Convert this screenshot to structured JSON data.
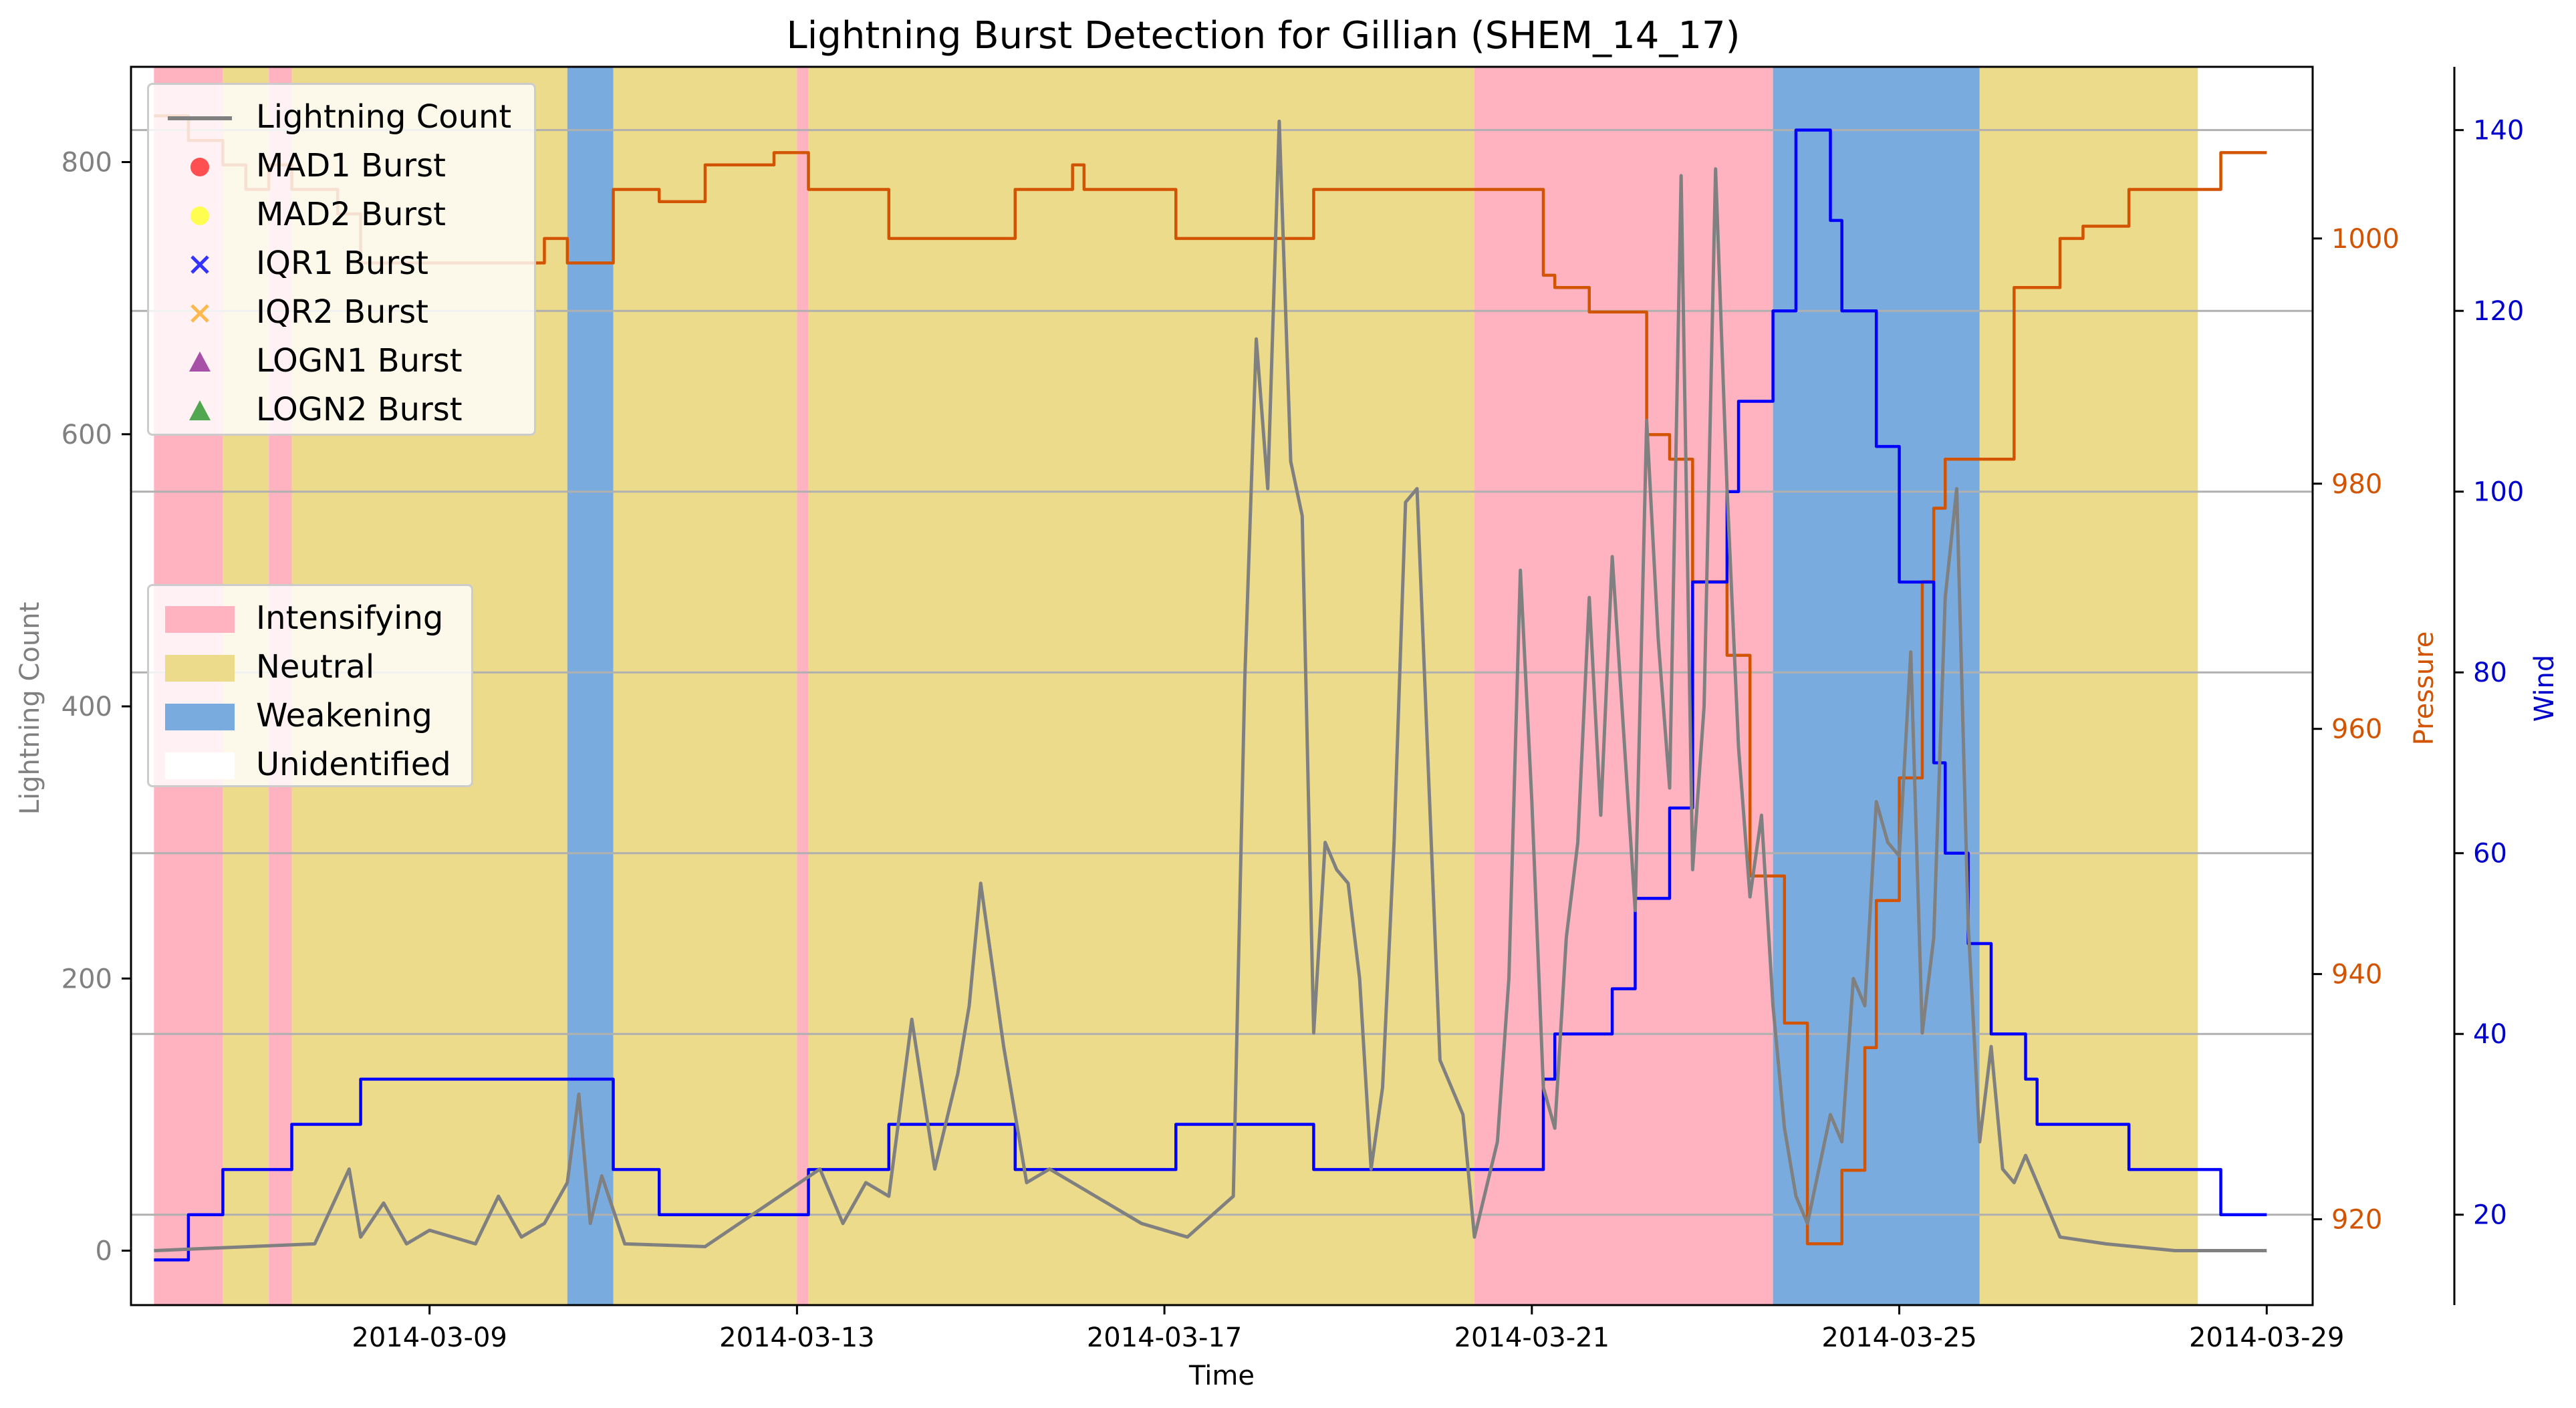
{
  "chart_data": {
    "type": "line",
    "title": "Lightning Burst Detection for Gillian (SHEM_14_17)",
    "xlabel": "Time",
    "x_ticks": [
      "2014-03-09",
      "2014-03-13",
      "2014-03-17",
      "2014-03-21",
      "2014-03-25",
      "2014-03-29"
    ],
    "x_range": [
      "2014-03-05T18:00",
      "2014-03-29T12:00"
    ],
    "axes": {
      "left": {
        "label": "Lightning Count",
        "ylim": [
          -40,
          870
        ],
        "ticks": [
          0,
          200,
          400,
          600,
          800
        ],
        "color": "#808080"
      },
      "right1": {
        "label": "Pressure",
        "ylim": [
          913,
          1014
        ],
        "ticks": [
          920,
          940,
          960,
          980,
          1000
        ],
        "color": "#d35400"
      },
      "right2": {
        "label": "Wind",
        "ylim": [
          10,
          147
        ],
        "ticks": [
          20,
          40,
          60,
          80,
          100,
          120,
          140
        ],
        "color": "#0000cd"
      }
    },
    "grid": "horizontal (right2 ticks)",
    "legend_top": {
      "placement": "top-left",
      "entries": [
        {
          "label": "Lightning Count",
          "marker": "line",
          "color": "#808080"
        },
        {
          "label": "MAD1 Burst",
          "marker": "circle",
          "color": "#ff3333"
        },
        {
          "label": "MAD2 Burst",
          "marker": "circle",
          "color": "#ffff33"
        },
        {
          "label": "IQR1 Burst",
          "marker": "x",
          "color": "#3333ff"
        },
        {
          "label": "IQR2 Burst",
          "marker": "x",
          "color": "#ffb84d"
        },
        {
          "label": "LOGN1 Burst",
          "marker": "triangle",
          "color": "#993399"
        },
        {
          "label": "LOGN2 Burst",
          "marker": "triangle",
          "color": "#339933"
        }
      ]
    },
    "legend_phase": {
      "placement": "center-left",
      "entries": [
        {
          "label": "Intensifying",
          "color": "#ffb3c1"
        },
        {
          "label": "Neutral",
          "color": "#ecdb8a"
        },
        {
          "label": "Weakening",
          "color": "#7aabdf"
        },
        {
          "label": "Unidentified",
          "color": "#ffffff"
        }
      ]
    },
    "phases": [
      {
        "start": "2014-03-06T00:00",
        "end": "2014-03-06T18:00",
        "phase": "Intensifying"
      },
      {
        "start": "2014-03-06T18:00",
        "end": "2014-03-07T06:00",
        "phase": "Neutral"
      },
      {
        "start": "2014-03-07T06:00",
        "end": "2014-03-07T12:00",
        "phase": "Intensifying"
      },
      {
        "start": "2014-03-07T12:00",
        "end": "2014-03-10T12:00",
        "phase": "Neutral"
      },
      {
        "start": "2014-03-10T12:00",
        "end": "2014-03-11T00:00",
        "phase": "Weakening"
      },
      {
        "start": "2014-03-11T00:00",
        "end": "2014-03-13T00:00",
        "phase": "Neutral"
      },
      {
        "start": "2014-03-13T00:00",
        "end": "2014-03-13T03:00",
        "phase": "Intensifying"
      },
      {
        "start": "2014-03-13T03:00",
        "end": "2014-03-20T09:00",
        "phase": "Neutral"
      },
      {
        "start": "2014-03-20T09:00",
        "end": "2014-03-23T15:00",
        "phase": "Intensifying"
      },
      {
        "start": "2014-03-23T15:00",
        "end": "2014-03-25T21:00",
        "phase": "Weakening"
      },
      {
        "start": "2014-03-25T21:00",
        "end": "2014-03-28T06:00",
        "phase": "Neutral"
      }
    ],
    "series": [
      {
        "name": "Pressure",
        "axis": "right1",
        "color": "#d35400",
        "style": "step",
        "points": [
          [
            "2014-03-06T00:00",
            1010
          ],
          [
            "2014-03-06T09:00",
            1008
          ],
          [
            "2014-03-06T18:00",
            1006
          ],
          [
            "2014-03-07T00:00",
            1004
          ],
          [
            "2014-03-07T06:00",
            1006
          ],
          [
            "2014-03-07T12:00",
            1004
          ],
          [
            "2014-03-08T00:00",
            1002
          ],
          [
            "2014-03-08T06:00",
            998
          ],
          [
            "2014-03-10T06:00",
            1000
          ],
          [
            "2014-03-10T12:00",
            998
          ],
          [
            "2014-03-11T00:00",
            1004
          ],
          [
            "2014-03-11T12:00",
            1003
          ],
          [
            "2014-03-12T00:00",
            1006
          ],
          [
            "2014-03-12T18:00",
            1007
          ],
          [
            "2014-03-13T03:00",
            1004
          ],
          [
            "2014-03-14T00:00",
            1000
          ],
          [
            "2014-03-15T09:00",
            1004
          ],
          [
            "2014-03-16T00:00",
            1006
          ],
          [
            "2014-03-16T03:00",
            1004
          ],
          [
            "2014-03-17T03:00",
            1000
          ],
          [
            "2014-03-18T15:00",
            1004
          ],
          [
            "2014-03-20T12:00",
            1004
          ],
          [
            "2014-03-21T03:00",
            997
          ],
          [
            "2014-03-21T06:00",
            996
          ],
          [
            "2014-03-21T15:00",
            994
          ],
          [
            "2014-03-22T06:00",
            984
          ],
          [
            "2014-03-22T12:00",
            982
          ],
          [
            "2014-03-22T18:00",
            972
          ],
          [
            "2014-03-23T03:00",
            966
          ],
          [
            "2014-03-23T09:00",
            948
          ],
          [
            "2014-03-23T18:00",
            936
          ],
          [
            "2014-03-24T00:00",
            918
          ],
          [
            "2014-03-24T09:00",
            924
          ],
          [
            "2014-03-24T15:00",
            934
          ],
          [
            "2014-03-24T18:00",
            946
          ],
          [
            "2014-03-25T00:00",
            956
          ],
          [
            "2014-03-25T06:00",
            972
          ],
          [
            "2014-03-25T09:00",
            978
          ],
          [
            "2014-03-25T12:00",
            982
          ],
          [
            "2014-03-26T06:00",
            996
          ],
          [
            "2014-03-26T18:00",
            1000
          ],
          [
            "2014-03-27T00:00",
            1001
          ],
          [
            "2014-03-27T12:00",
            1004
          ],
          [
            "2014-03-28T12:00",
            1007
          ],
          [
            "2014-03-29T00:00",
            1007
          ]
        ]
      },
      {
        "name": "Wind",
        "axis": "right2",
        "color": "#0000ff",
        "style": "step",
        "points": [
          [
            "2014-03-06T00:00",
            15
          ],
          [
            "2014-03-06T09:00",
            20
          ],
          [
            "2014-03-06T18:00",
            25
          ],
          [
            "2014-03-07T12:00",
            30
          ],
          [
            "2014-03-08T06:00",
            35
          ],
          [
            "2014-03-11T00:00",
            25
          ],
          [
            "2014-03-11T12:00",
            20
          ],
          [
            "2014-03-13T03:00",
            25
          ],
          [
            "2014-03-14T00:00",
            30
          ],
          [
            "2014-03-15T09:00",
            25
          ],
          [
            "2014-03-17T03:00",
            30
          ],
          [
            "2014-03-18T15:00",
            25
          ],
          [
            "2014-03-21T03:00",
            35
          ],
          [
            "2014-03-21T06:00",
            40
          ],
          [
            "2014-03-21T21:00",
            45
          ],
          [
            "2014-03-22T03:00",
            55
          ],
          [
            "2014-03-22T12:00",
            65
          ],
          [
            "2014-03-22T18:00",
            90
          ],
          [
            "2014-03-23T03:00",
            100
          ],
          [
            "2014-03-23T06:00",
            110
          ],
          [
            "2014-03-23T15:00",
            120
          ],
          [
            "2014-03-23T21:00",
            140
          ],
          [
            "2014-03-24T06:00",
            130
          ],
          [
            "2014-03-24T09:00",
            120
          ],
          [
            "2014-03-24T18:00",
            105
          ],
          [
            "2014-03-25T00:00",
            90
          ],
          [
            "2014-03-25T09:00",
            70
          ],
          [
            "2014-03-25T12:00",
            60
          ],
          [
            "2014-03-25T18:00",
            50
          ],
          [
            "2014-03-26T00:00",
            40
          ],
          [
            "2014-03-26T09:00",
            35
          ],
          [
            "2014-03-26T12:00",
            30
          ],
          [
            "2014-03-27T12:00",
            25
          ],
          [
            "2014-03-28T12:00",
            20
          ],
          [
            "2014-03-29T00:00",
            20
          ]
        ]
      },
      {
        "name": "Lightning Count",
        "axis": "left",
        "color": "#808080",
        "style": "line",
        "points": [
          [
            "2014-03-06T00:00",
            0
          ],
          [
            "2014-03-07T18:00",
            5
          ],
          [
            "2014-03-08T03:00",
            60
          ],
          [
            "2014-03-08T06:00",
            10
          ],
          [
            "2014-03-08T12:00",
            35
          ],
          [
            "2014-03-08T18:00",
            5
          ],
          [
            "2014-03-09T00:00",
            15
          ],
          [
            "2014-03-09T12:00",
            5
          ],
          [
            "2014-03-09T18:00",
            40
          ],
          [
            "2014-03-10T00:00",
            10
          ],
          [
            "2014-03-10T06:00",
            20
          ],
          [
            "2014-03-10T12:00",
            50
          ],
          [
            "2014-03-10T15:00",
            115
          ],
          [
            "2014-03-10T18:00",
            20
          ],
          [
            "2014-03-10T21:00",
            55
          ],
          [
            "2014-03-11T03:00",
            5
          ],
          [
            "2014-03-12T00:00",
            3
          ],
          [
            "2014-03-13T06:00",
            60
          ],
          [
            "2014-03-13T12:00",
            20
          ],
          [
            "2014-03-13T18:00",
            50
          ],
          [
            "2014-03-14T00:00",
            40
          ],
          [
            "2014-03-14T06:00",
            170
          ],
          [
            "2014-03-14T12:00",
            60
          ],
          [
            "2014-03-14T18:00",
            130
          ],
          [
            "2014-03-14T21:00",
            180
          ],
          [
            "2014-03-15T00:00",
            270
          ],
          [
            "2014-03-15T03:00",
            210
          ],
          [
            "2014-03-15T06:00",
            150
          ],
          [
            "2014-03-15T12:00",
            50
          ],
          [
            "2014-03-15T18:00",
            60
          ],
          [
            "2014-03-16T06:00",
            40
          ],
          [
            "2014-03-16T18:00",
            20
          ],
          [
            "2014-03-17T06:00",
            10
          ],
          [
            "2014-03-17T18:00",
            40
          ],
          [
            "2014-03-17T21:00",
            420
          ],
          [
            "2014-03-18T00:00",
            670
          ],
          [
            "2014-03-18T03:00",
            560
          ],
          [
            "2014-03-18T06:00",
            830
          ],
          [
            "2014-03-18T09:00",
            580
          ],
          [
            "2014-03-18T12:00",
            540
          ],
          [
            "2014-03-18T15:00",
            160
          ],
          [
            "2014-03-18T18:00",
            300
          ],
          [
            "2014-03-18T21:00",
            280
          ],
          [
            "2014-03-19T00:00",
            270
          ],
          [
            "2014-03-19T03:00",
            200
          ],
          [
            "2014-03-19T06:00",
            60
          ],
          [
            "2014-03-19T09:00",
            120
          ],
          [
            "2014-03-19T12:00",
            300
          ],
          [
            "2014-03-19T15:00",
            550
          ],
          [
            "2014-03-19T18:00",
            560
          ],
          [
            "2014-03-19T21:00",
            350
          ],
          [
            "2014-03-20T00:00",
            140
          ],
          [
            "2014-03-20T06:00",
            100
          ],
          [
            "2014-03-20T09:00",
            10
          ],
          [
            "2014-03-20T15:00",
            80
          ],
          [
            "2014-03-20T18:00",
            200
          ],
          [
            "2014-03-20T21:00",
            500
          ],
          [
            "2014-03-21T00:00",
            330
          ],
          [
            "2014-03-21T03:00",
            120
          ],
          [
            "2014-03-21T06:00",
            90
          ],
          [
            "2014-03-21T09:00",
            230
          ],
          [
            "2014-03-21T12:00",
            300
          ],
          [
            "2014-03-21T15:00",
            480
          ],
          [
            "2014-03-21T18:00",
            320
          ],
          [
            "2014-03-21T21:00",
            510
          ],
          [
            "2014-03-22T00:00",
            380
          ],
          [
            "2014-03-22T03:00",
            250
          ],
          [
            "2014-03-22T06:00",
            610
          ],
          [
            "2014-03-22T09:00",
            450
          ],
          [
            "2014-03-22T12:00",
            340
          ],
          [
            "2014-03-22T15:00",
            790
          ],
          [
            "2014-03-22T18:00",
            280
          ],
          [
            "2014-03-22T21:00",
            400
          ],
          [
            "2014-03-23T00:00",
            795
          ],
          [
            "2014-03-23T03:00",
            560
          ],
          [
            "2014-03-23T06:00",
            370
          ],
          [
            "2014-03-23T09:00",
            260
          ],
          [
            "2014-03-23T12:00",
            320
          ],
          [
            "2014-03-23T15:00",
            180
          ],
          [
            "2014-03-23T18:00",
            90
          ],
          [
            "2014-03-23T21:00",
            40
          ],
          [
            "2014-03-24T00:00",
            20
          ],
          [
            "2014-03-24T06:00",
            100
          ],
          [
            "2014-03-24T09:00",
            80
          ],
          [
            "2014-03-24T12:00",
            200
          ],
          [
            "2014-03-24T15:00",
            180
          ],
          [
            "2014-03-24T18:00",
            330
          ],
          [
            "2014-03-24T21:00",
            300
          ],
          [
            "2014-03-25T00:00",
            290
          ],
          [
            "2014-03-25T03:00",
            440
          ],
          [
            "2014-03-25T06:00",
            160
          ],
          [
            "2014-03-25T09:00",
            230
          ],
          [
            "2014-03-25T12:00",
            480
          ],
          [
            "2014-03-25T15:00",
            560
          ],
          [
            "2014-03-25T18:00",
            240
          ],
          [
            "2014-03-25T21:00",
            80
          ],
          [
            "2014-03-26T00:00",
            150
          ],
          [
            "2014-03-26T03:00",
            60
          ],
          [
            "2014-03-26T06:00",
            50
          ],
          [
            "2014-03-26T09:00",
            70
          ],
          [
            "2014-03-26T12:00",
            50
          ],
          [
            "2014-03-26T18:00",
            10
          ],
          [
            "2014-03-27T06:00",
            5
          ],
          [
            "2014-03-28T00:00",
            0
          ],
          [
            "2014-03-29T00:00",
            0
          ]
        ]
      }
    ]
  }
}
